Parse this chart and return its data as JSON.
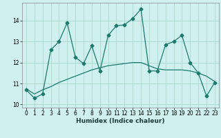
{
  "xlabel": "Humidex (Indice chaleur)",
  "background_color": "#cff0ee",
  "grid_color": "#aad8cc",
  "line_color": "#1a7a6e",
  "x_data": [
    0,
    1,
    2,
    3,
    4,
    5,
    6,
    7,
    8,
    9,
    10,
    11,
    12,
    13,
    14,
    15,
    16,
    17,
    18,
    19,
    20,
    21,
    22,
    23
  ],
  "y_jagged": [
    10.7,
    10.3,
    10.5,
    12.6,
    13.0,
    13.9,
    12.25,
    11.95,
    12.8,
    11.6,
    13.3,
    13.75,
    13.8,
    14.1,
    14.55,
    11.6,
    11.6,
    12.85,
    13.0,
    13.3,
    12.0,
    11.5,
    10.4,
    11.05
  ],
  "y_smooth": [
    10.75,
    10.5,
    10.7,
    10.85,
    11.05,
    11.2,
    11.35,
    11.5,
    11.65,
    11.75,
    11.85,
    11.9,
    11.95,
    12.0,
    12.0,
    11.85,
    11.7,
    11.65,
    11.65,
    11.65,
    11.6,
    11.5,
    11.35,
    11.1
  ],
  "ylim": [
    9.85,
    14.85
  ],
  "xlim": [
    -0.5,
    23.5
  ],
  "yticks": [
    10,
    11,
    12,
    13,
    14
  ],
  "xticks": [
    0,
    1,
    2,
    3,
    4,
    5,
    6,
    7,
    8,
    9,
    10,
    11,
    12,
    13,
    14,
    15,
    16,
    17,
    18,
    19,
    20,
    21,
    22,
    23
  ],
  "tick_fontsize": 5.5,
  "xlabel_fontsize": 6.5
}
